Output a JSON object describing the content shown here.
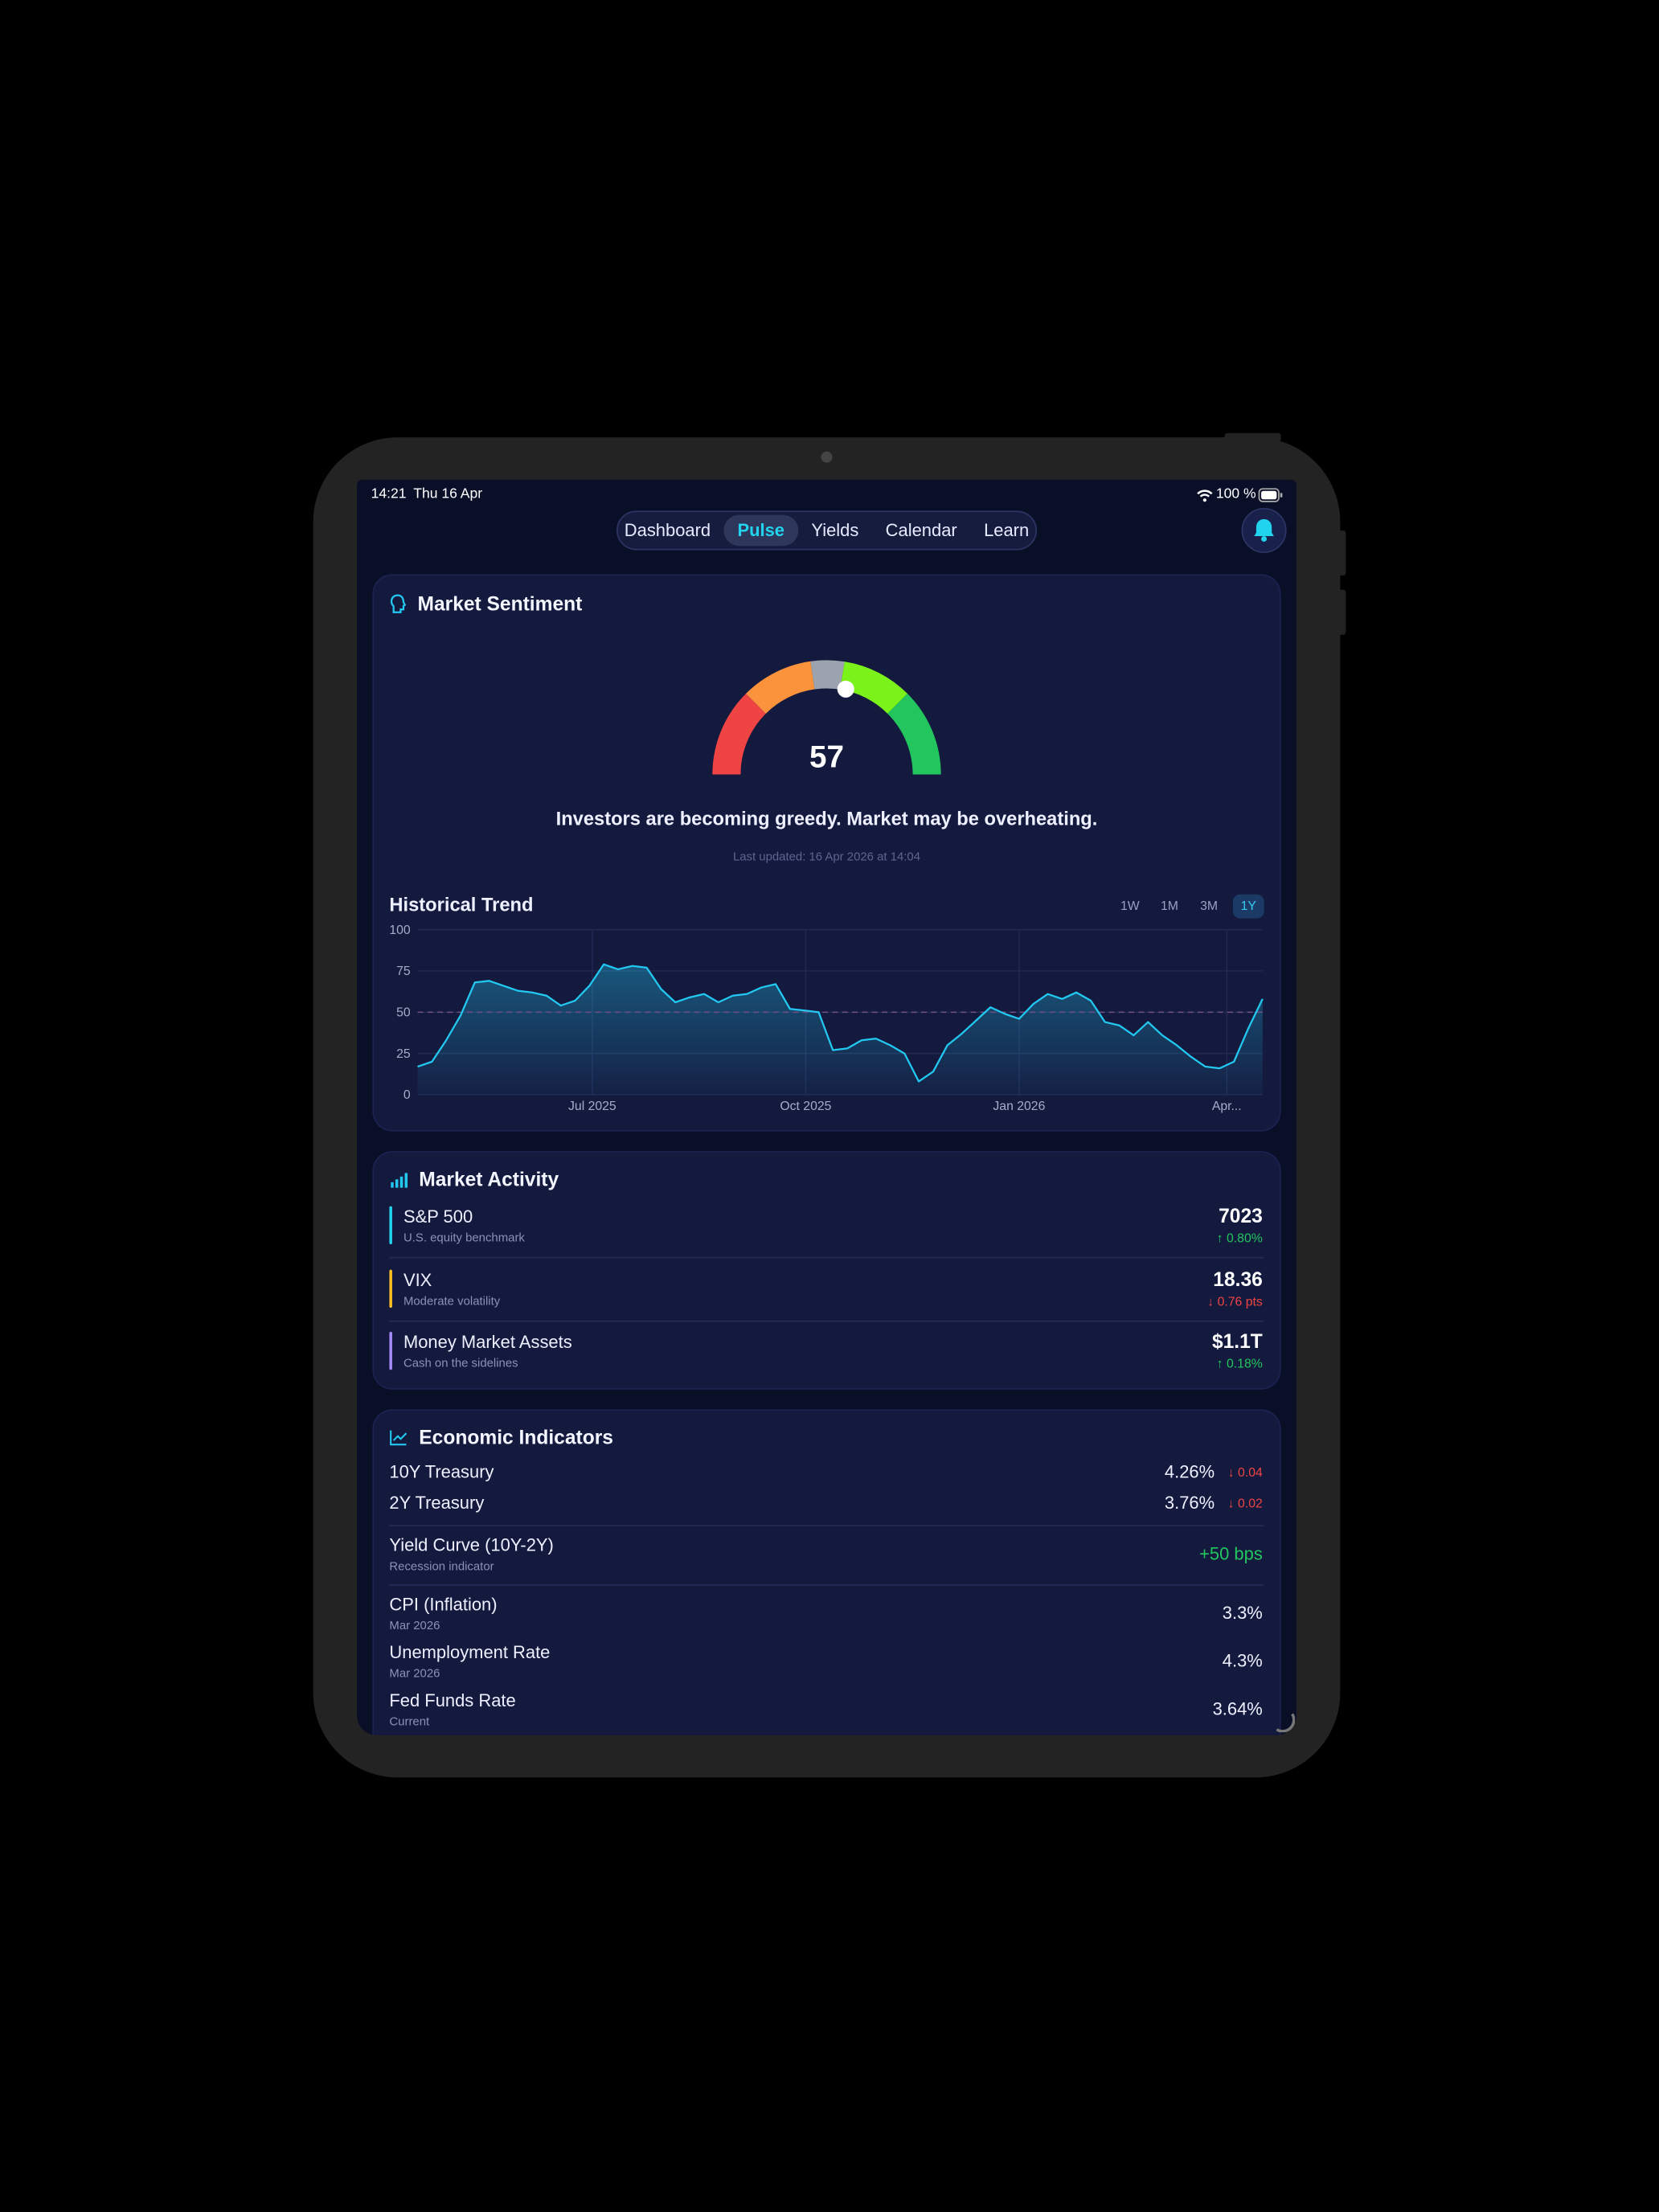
{
  "status_bar": {
    "time": "14:21",
    "date": "Thu 16 Apr",
    "battery": "100 %"
  },
  "nav": {
    "tabs": [
      "Dashboard",
      "Pulse",
      "Yields",
      "Calendar",
      "Learn"
    ],
    "active": 1
  },
  "sentiment": {
    "title": "Market Sentiment",
    "gauge": {
      "value": 57,
      "range": [
        0,
        100
      ],
      "zones": [
        {
          "from": 0,
          "to": 25,
          "color": "#ef4444"
        },
        {
          "from": 25,
          "to": 45.5,
          "color": "#fb923c"
        },
        {
          "from": 45.5,
          "to": 55,
          "color": "#9ca3af"
        },
        {
          "from": 55,
          "to": 75,
          "color": "#7cf21b"
        },
        {
          "from": 75,
          "to": 100,
          "color": "#22c55e"
        }
      ]
    },
    "message": "Investors are becoming greedy. Market may be overheating.",
    "last_updated": "Last updated: 16 Apr 2026 at 14:04",
    "trend_title": "Historical Trend",
    "ranges": [
      "1W",
      "1M",
      "3M",
      "1Y"
    ],
    "active_range": 3
  },
  "chart_data": {
    "type": "line",
    "color": "#22c8f0",
    "values": [
      17,
      20,
      33,
      48,
      68,
      69,
      66,
      63,
      62,
      60,
      54,
      57,
      66,
      79,
      76,
      78,
      77,
      64,
      56,
      59,
      61,
      56,
      60,
      61,
      65,
      67,
      52,
      51,
      50,
      27,
      28,
      33,
      34,
      30,
      25,
      8,
      14,
      30,
      37,
      45,
      53,
      49,
      46,
      55,
      61,
      58,
      62,
      57,
      44,
      42,
      36,
      44,
      36,
      30,
      23,
      17,
      16,
      20,
      40,
      58
    ],
    "xlim": [
      0,
      59
    ],
    "xticks": [
      {
        "value": 12.2,
        "label": "Jul 2025"
      },
      {
        "value": 27.1,
        "label": "Oct 2025"
      },
      {
        "value": 42,
        "label": "Jan 2026"
      },
      {
        "value": 56.5,
        "label": "Apr..."
      }
    ],
    "ylim": [
      0,
      100
    ],
    "yticks": [
      0,
      25,
      50,
      75,
      100
    ],
    "grid": true,
    "reference_line": 50
  },
  "activity": {
    "title": "Market Activity",
    "rows": [
      {
        "name": "S&P 500",
        "note": "U.S. equity benchmark",
        "value": 7023,
        "change": "↑ 0.80%",
        "change_color": "#22c55e",
        "accent": "#22d3ee"
      },
      {
        "name": "VIX",
        "note": "Moderate volatility",
        "value": 18.36,
        "change": "↓ 0.76 pts",
        "change_color": "#ef4444",
        "accent": "#fbbf24"
      },
      {
        "name": "Money Market Assets",
        "note": "Cash on the sidelines",
        "value": "$1.1T",
        "change": "↑ 0.18%",
        "change_color": "#22c55e",
        "accent": "#a78bfa"
      }
    ]
  },
  "indicators": {
    "title": "Economic Indicators",
    "groups": [
      [
        {
          "name": "10Y Treasury",
          "value": "4.26%",
          "change": "↓ 0.04",
          "change_color": "#ef4444"
        },
        {
          "name": "2Y Treasury",
          "value": "3.76%",
          "change": "↓ 0.02",
          "change_color": "#ef4444"
        }
      ],
      [
        {
          "name": "Yield Curve (10Y-2Y)",
          "note": "Recession indicator",
          "value": "+50 bps",
          "value_color": "#22c55e"
        }
      ],
      [
        {
          "name": "CPI (Inflation)",
          "note": "Mar 2026",
          "value": "3.3%"
        },
        {
          "name": "Unemployment Rate",
          "note": "Mar 2026",
          "value": "4.3%"
        },
        {
          "name": "Fed Funds Rate",
          "note": "Current",
          "value": "3.64%"
        }
      ]
    ]
  }
}
